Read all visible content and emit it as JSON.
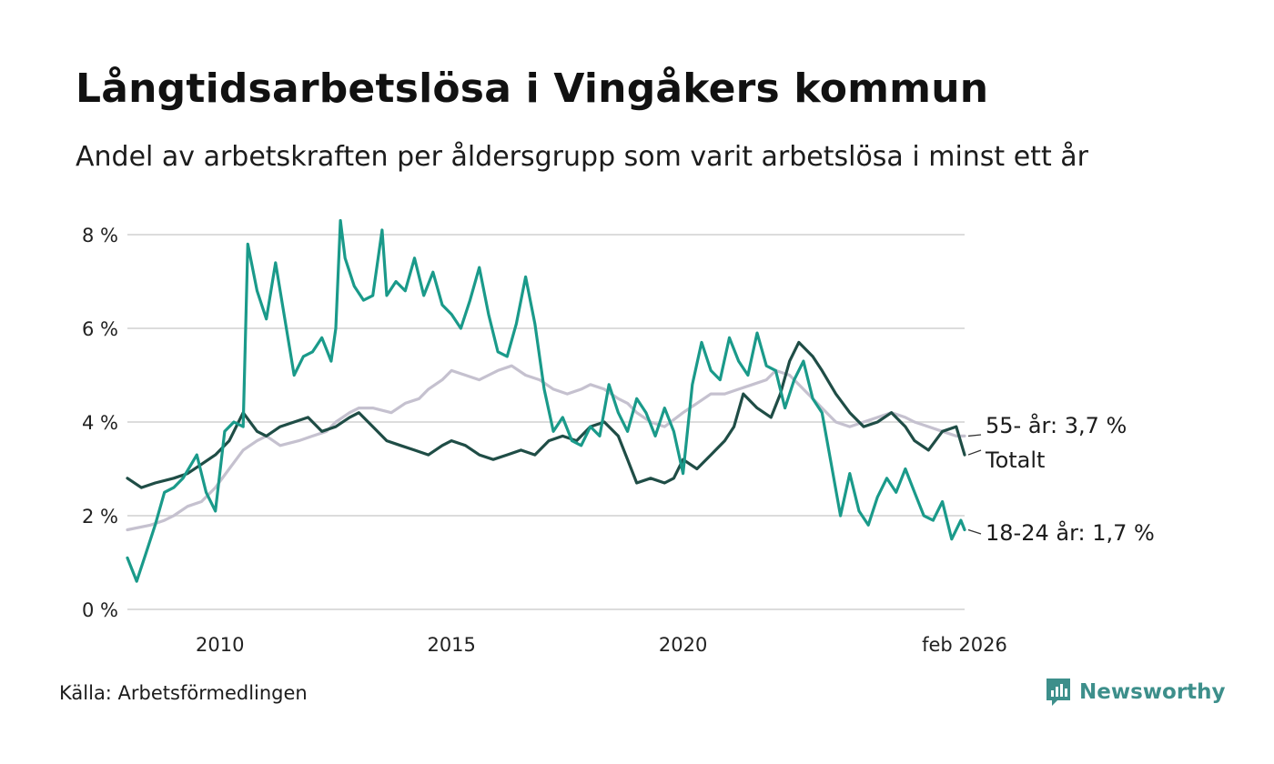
{
  "title": "Långtidsarbetslösa i Vingåkers kommun",
  "subtitle": "Andel av arbetskraften per åldersgrupp som varit arbetslösa i minst ett år",
  "source": "Källa: Arbetsförmedlingen",
  "brand": "Newsworthy",
  "colors": {
    "total": "#1f4d46",
    "youth": "#1a9a8a",
    "older": "#c5c1cf",
    "grid": "#dcdcdc",
    "brand": "#3d8f8b"
  },
  "chart_data": {
    "type": "line",
    "title": "Långtidsarbetslösa i Vingåkers kommun",
    "ylabel": "",
    "xlabel": "",
    "xlim": [
      2008.0,
      2026.08
    ],
    "ylim": [
      0,
      8
    ],
    "y_ticks": [
      0,
      2,
      4,
      6,
      8
    ],
    "y_tick_labels": [
      "0 %",
      "2 %",
      "4 %",
      "6 %",
      "8 %"
    ],
    "x_ticks": [
      2010,
      2015,
      2020,
      2026.08
    ],
    "x_tick_labels": [
      "2010",
      "2015",
      "2020",
      "feb 2026"
    ],
    "grid": true,
    "series": [
      {
        "name": "55- år",
        "color": "#c5c1cf",
        "end_label": "55- år: 3,7 %",
        "x": [
          2008.0,
          2008.5,
          2008.8,
          2009.0,
          2009.3,
          2009.6,
          2009.9,
          2010.2,
          2010.5,
          2010.8,
          2011.0,
          2011.3,
          2011.7,
          2012.0,
          2012.3,
          2012.5,
          2012.8,
          2013.0,
          2013.3,
          2013.7,
          2014.0,
          2014.3,
          2014.5,
          2014.8,
          2015.0,
          2015.3,
          2015.6,
          2015.8,
          2016.0,
          2016.3,
          2016.6,
          2016.9,
          2017.2,
          2017.5,
          2017.8,
          2018.0,
          2018.3,
          2018.6,
          2018.8,
          2019.0,
          2019.3,
          2019.6,
          2020.0,
          2020.3,
          2020.6,
          2020.9,
          2021.2,
          2021.5,
          2021.8,
          2022.0,
          2022.3,
          2022.5,
          2022.8,
          2023.0,
          2023.3,
          2023.6,
          2023.9,
          2024.2,
          2024.5,
          2024.8,
          2025.0,
          2025.3,
          2025.6,
          2025.9,
          2026.08
        ],
        "y": [
          1.7,
          1.8,
          1.9,
          2.0,
          2.2,
          2.3,
          2.6,
          3.0,
          3.4,
          3.6,
          3.7,
          3.5,
          3.6,
          3.7,
          3.8,
          4.0,
          4.2,
          4.3,
          4.3,
          4.2,
          4.4,
          4.5,
          4.7,
          4.9,
          5.1,
          5.0,
          4.9,
          5.0,
          5.1,
          5.2,
          5.0,
          4.9,
          4.7,
          4.6,
          4.7,
          4.8,
          4.7,
          4.5,
          4.4,
          4.2,
          4.0,
          3.9,
          4.2,
          4.4,
          4.6,
          4.6,
          4.7,
          4.8,
          4.9,
          5.1,
          5.0,
          4.8,
          4.5,
          4.3,
          4.0,
          3.9,
          4.0,
          4.1,
          4.2,
          4.1,
          4.0,
          3.9,
          3.8,
          3.7,
          3.7
        ]
      },
      {
        "name": "Totalt",
        "color": "#1f4d46",
        "end_label": "Totalt",
        "x": [
          2008.0,
          2008.3,
          2008.6,
          2009.0,
          2009.3,
          2009.6,
          2009.9,
          2010.2,
          2010.5,
          2010.8,
          2011.0,
          2011.3,
          2011.6,
          2011.9,
          2012.2,
          2012.5,
          2012.8,
          2013.0,
          2013.3,
          2013.6,
          2013.9,
          2014.2,
          2014.5,
          2014.8,
          2015.0,
          2015.3,
          2015.6,
          2015.9,
          2016.2,
          2016.5,
          2016.8,
          2017.1,
          2017.4,
          2017.7,
          2018.0,
          2018.3,
          2018.6,
          2018.8,
          2019.0,
          2019.3,
          2019.6,
          2019.8,
          2020.0,
          2020.3,
          2020.6,
          2020.9,
          2021.1,
          2021.3,
          2021.6,
          2021.9,
          2022.1,
          2022.3,
          2022.5,
          2022.8,
          2023.0,
          2023.3,
          2023.6,
          2023.9,
          2024.2,
          2024.5,
          2024.8,
          2025.0,
          2025.3,
          2025.6,
          2025.9,
          2026.08
        ],
        "y": [
          2.8,
          2.6,
          2.7,
          2.8,
          2.9,
          3.1,
          3.3,
          3.6,
          4.2,
          3.8,
          3.7,
          3.9,
          4.0,
          4.1,
          3.8,
          3.9,
          4.1,
          4.2,
          3.9,
          3.6,
          3.5,
          3.4,
          3.3,
          3.5,
          3.6,
          3.5,
          3.3,
          3.2,
          3.3,
          3.4,
          3.3,
          3.6,
          3.7,
          3.6,
          3.9,
          4.0,
          3.7,
          3.2,
          2.7,
          2.8,
          2.7,
          2.8,
          3.2,
          3.0,
          3.3,
          3.6,
          3.9,
          4.6,
          4.3,
          4.1,
          4.6,
          5.3,
          5.7,
          5.4,
          5.1,
          4.6,
          4.2,
          3.9,
          4.0,
          4.2,
          3.9,
          3.6,
          3.4,
          3.8,
          3.9,
          3.3
        ]
      },
      {
        "name": "18-24 år",
        "color": "#1a9a8a",
        "end_label": "18-24 år: 1,7 %",
        "x": [
          2008.0,
          2008.2,
          2008.4,
          2008.6,
          2008.8,
          2009.0,
          2009.2,
          2009.5,
          2009.7,
          2009.9,
          2010.1,
          2010.3,
          2010.5,
          2010.6,
          2010.8,
          2011.0,
          2011.2,
          2011.4,
          2011.6,
          2011.8,
          2012.0,
          2012.2,
          2012.4,
          2012.5,
          2012.6,
          2012.7,
          2012.9,
          2013.1,
          2013.3,
          2013.5,
          2013.6,
          2013.8,
          2014.0,
          2014.2,
          2014.4,
          2014.6,
          2014.8,
          2015.0,
          2015.2,
          2015.4,
          2015.6,
          2015.8,
          2016.0,
          2016.2,
          2016.4,
          2016.6,
          2016.8,
          2017.0,
          2017.2,
          2017.4,
          2017.6,
          2017.8,
          2018.0,
          2018.2,
          2018.4,
          2018.6,
          2018.8,
          2019.0,
          2019.2,
          2019.4,
          2019.6,
          2019.8,
          2020.0,
          2020.2,
          2020.4,
          2020.6,
          2020.8,
          2021.0,
          2021.2,
          2021.4,
          2021.6,
          2021.8,
          2022.0,
          2022.2,
          2022.4,
          2022.6,
          2022.8,
          2023.0,
          2023.2,
          2023.4,
          2023.6,
          2023.8,
          2024.0,
          2024.2,
          2024.4,
          2024.6,
          2024.8,
          2025.0,
          2025.2,
          2025.4,
          2025.6,
          2025.8,
          2026.0,
          2026.08
        ],
        "y": [
          1.1,
          0.6,
          1.2,
          1.8,
          2.5,
          2.6,
          2.8,
          3.3,
          2.5,
          2.1,
          3.8,
          4.0,
          3.9,
          7.8,
          6.8,
          6.2,
          7.4,
          6.2,
          5.0,
          5.4,
          5.5,
          5.8,
          5.3,
          6.0,
          8.3,
          7.5,
          6.9,
          6.6,
          6.7,
          8.1,
          6.7,
          7.0,
          6.8,
          7.5,
          6.7,
          7.2,
          6.5,
          6.3,
          6.0,
          6.6,
          7.3,
          6.3,
          5.5,
          5.4,
          6.1,
          7.1,
          6.1,
          4.7,
          3.8,
          4.1,
          3.6,
          3.5,
          3.9,
          3.7,
          4.8,
          4.2,
          3.8,
          4.5,
          4.2,
          3.7,
          4.3,
          3.8,
          2.9,
          4.8,
          5.7,
          5.1,
          4.9,
          5.8,
          5.3,
          5.0,
          5.9,
          5.2,
          5.1,
          4.3,
          4.9,
          5.3,
          4.5,
          4.2,
          3.1,
          2.0,
          2.9,
          2.1,
          1.8,
          2.4,
          2.8,
          2.5,
          3.0,
          2.5,
          2.0,
          1.9,
          2.3,
          1.5,
          1.9,
          1.7
        ]
      }
    ]
  }
}
